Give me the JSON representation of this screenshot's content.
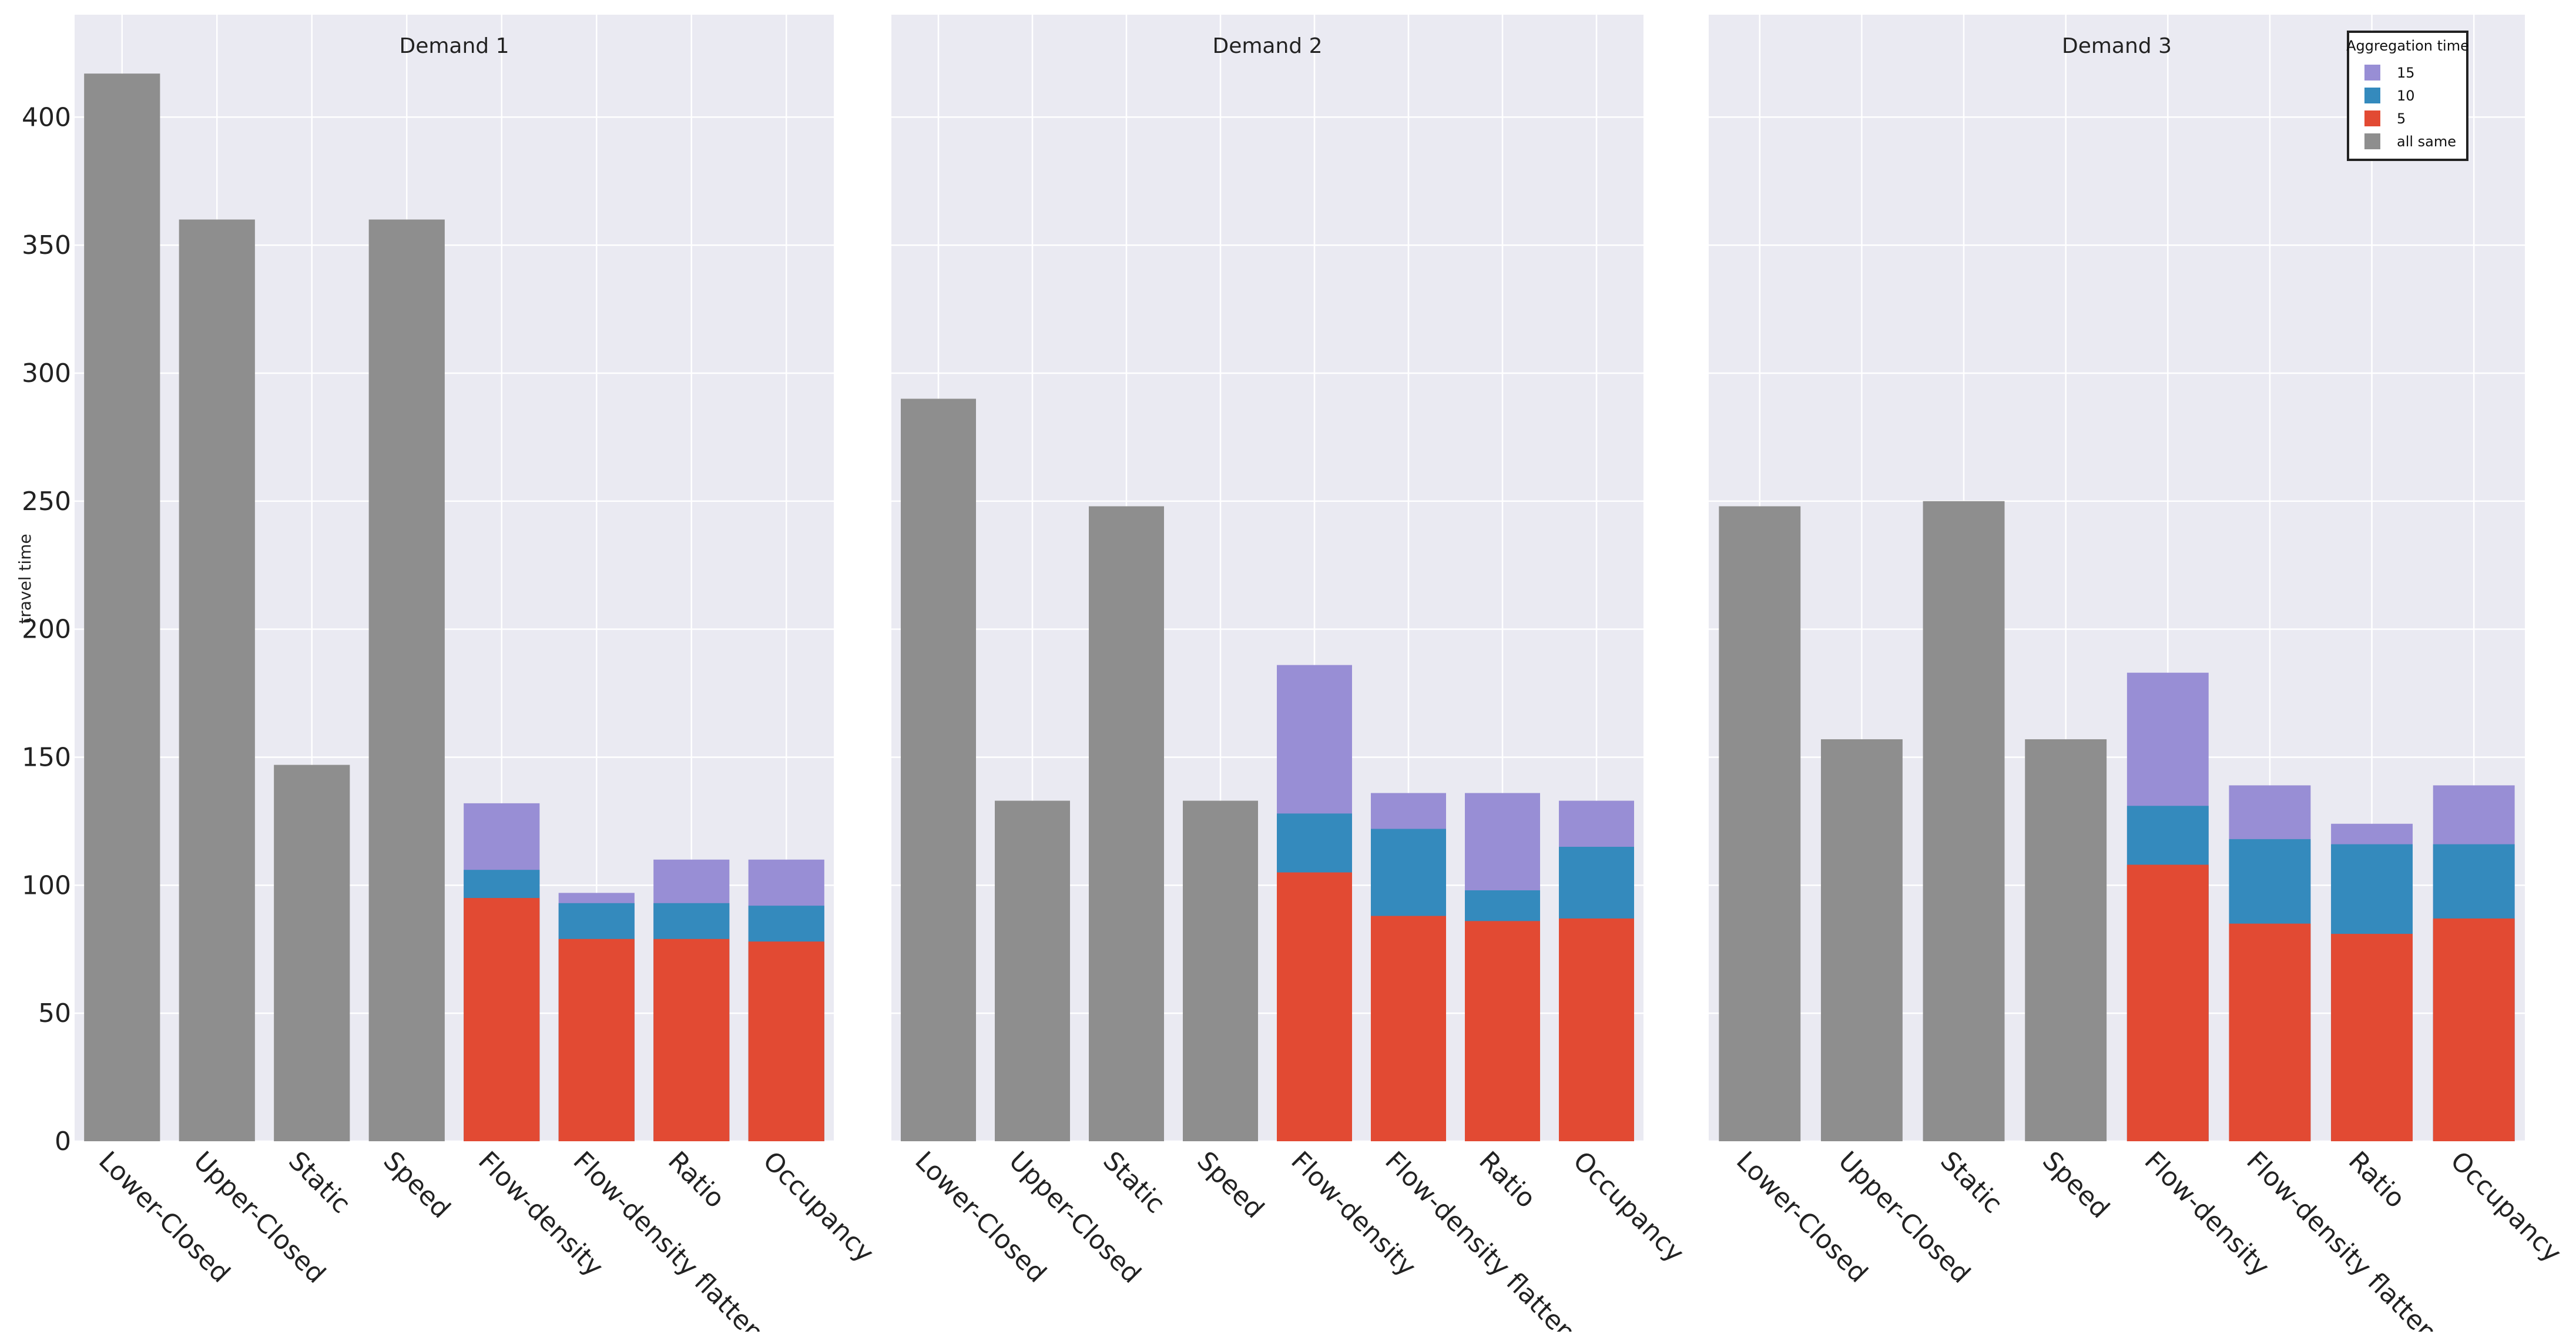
{
  "chart_data": {
    "type": "bar",
    "stacked": true,
    "ylabel": "travel time",
    "ylim": [
      0,
      440
    ],
    "yticks": [
      0,
      50,
      100,
      150,
      200,
      250,
      300,
      350,
      400
    ],
    "grid": true,
    "categories": [
      "Lower-Closed",
      "Upper-Closed",
      "Static",
      "Speed",
      "Flow-density",
      "Flow-density flatten",
      "Ratio",
      "Occupancy"
    ],
    "legend": {
      "title": "Aggregation time",
      "placement": "top-right",
      "entries": [
        {
          "label": "15",
          "color": "#988ed5"
        },
        {
          "label": "10",
          "color": "#348abd"
        },
        {
          "label": "5",
          "color": "#e24a33"
        },
        {
          "label": "all same",
          "color": "#8e8e8e"
        }
      ]
    },
    "colors": {
      "all_same": "#8e8e8e",
      "t5": "#e24a33",
      "t10": "#348abd",
      "t15": "#988ed5"
    },
    "panels": [
      {
        "title": "Demand 1",
        "all_same": [
          417,
          360,
          147,
          360,
          null,
          null,
          null,
          null
        ],
        "t5": [
          null,
          null,
          null,
          null,
          95,
          79,
          79,
          78
        ],
        "t10": [
          null,
          null,
          null,
          null,
          106,
          93,
          93,
          92
        ],
        "t15": [
          null,
          null,
          null,
          null,
          132,
          97,
          110,
          110
        ]
      },
      {
        "title": "Demand 2",
        "all_same": [
          290,
          133,
          248,
          133,
          null,
          null,
          null,
          null
        ],
        "t5": [
          null,
          null,
          null,
          null,
          105,
          88,
          86,
          87
        ],
        "t10": [
          null,
          null,
          null,
          null,
          128,
          122,
          98,
          115
        ],
        "t15": [
          null,
          null,
          null,
          null,
          186,
          136,
          136,
          133
        ]
      },
      {
        "title": "Demand 3",
        "all_same": [
          248,
          157,
          250,
          157,
          null,
          null,
          null,
          null
        ],
        "t5": [
          null,
          null,
          null,
          null,
          108,
          85,
          81,
          87
        ],
        "t10": [
          null,
          null,
          null,
          null,
          131,
          118,
          116,
          116
        ],
        "t15": [
          null,
          null,
          null,
          null,
          183,
          139,
          124,
          139
        ]
      }
    ]
  }
}
